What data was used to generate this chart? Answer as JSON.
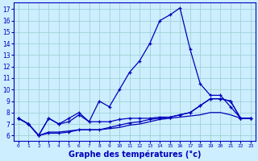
{
  "xlabel": "Graphe des températures (°c)",
  "bg_color": "#cceeff",
  "plot_bg_color": "#cceeff",
  "line_color": "#0000bb",
  "grid_color": "#99cccc",
  "xlabel_bg": "#ddeeff",
  "ylim": [
    5.5,
    17.6
  ],
  "xlim": [
    -0.5,
    23.5
  ],
  "yticks": [
    6,
    7,
    8,
    9,
    10,
    11,
    12,
    13,
    14,
    15,
    16,
    17
  ],
  "xticks": [
    0,
    1,
    2,
    3,
    4,
    5,
    6,
    7,
    8,
    9,
    10,
    11,
    12,
    13,
    14,
    15,
    16,
    17,
    18,
    19,
    20,
    21,
    22,
    23
  ],
  "series1_y": [
    7.5,
    7.0,
    6.0,
    7.5,
    7.0,
    7.5,
    8.0,
    7.2,
    9.0,
    8.5,
    10.0,
    11.5,
    12.5,
    14.0,
    16.0,
    16.5,
    17.1,
    13.5,
    10.5,
    9.5,
    9.5,
    8.5,
    7.5,
    7.5
  ],
  "series2_y": [
    7.5,
    7.0,
    6.0,
    7.5,
    7.0,
    7.2,
    7.8,
    7.2,
    7.2,
    7.2,
    7.4,
    7.5,
    7.5,
    7.5,
    7.6,
    7.6,
    7.8,
    8.0,
    8.6,
    9.2,
    9.2,
    9.0,
    7.5,
    7.5
  ],
  "series3_y": [
    7.5,
    7.0,
    6.0,
    6.3,
    6.3,
    6.4,
    6.5,
    6.5,
    6.5,
    6.6,
    6.7,
    6.9,
    7.0,
    7.2,
    7.4,
    7.5,
    7.6,
    7.7,
    7.8,
    8.0,
    8.0,
    7.8,
    7.5,
    7.5
  ],
  "series4_y": [
    7.5,
    7.0,
    6.0,
    6.2,
    6.2,
    6.3,
    6.5,
    6.5,
    6.5,
    6.7,
    6.9,
    7.1,
    7.2,
    7.4,
    7.5,
    7.6,
    7.8,
    8.0,
    8.6,
    9.2,
    9.2,
    9.0,
    7.5,
    7.5
  ]
}
